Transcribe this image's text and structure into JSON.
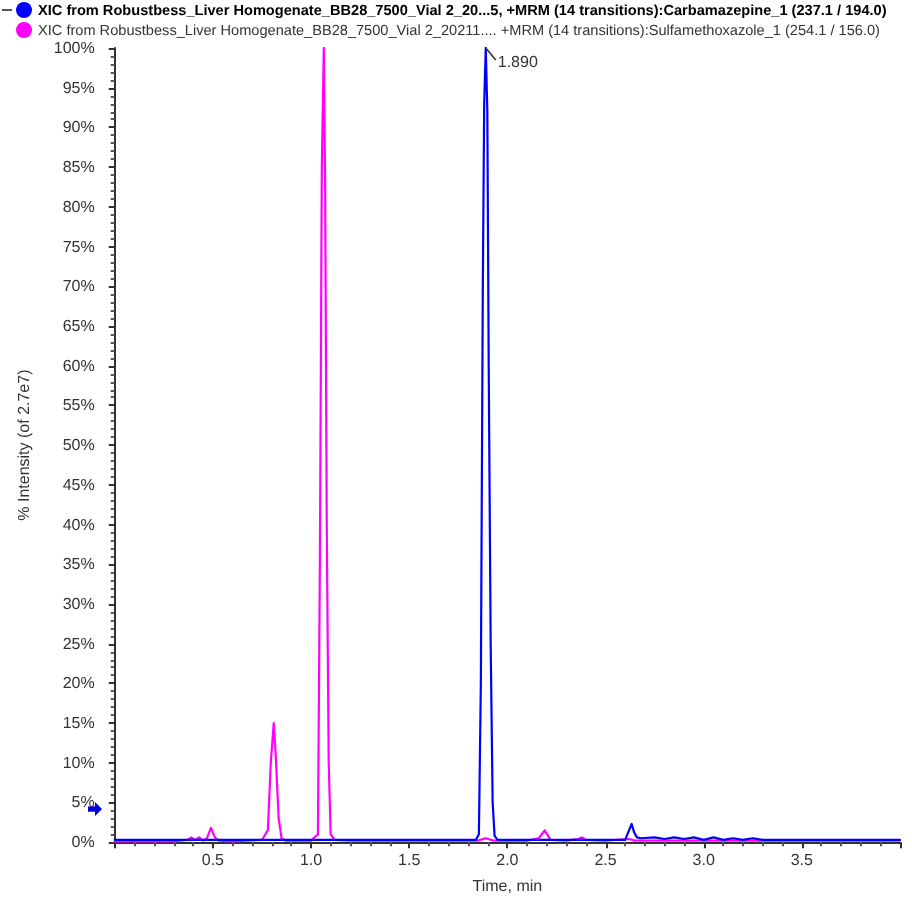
{
  "chart_data": {
    "type": "line",
    "xlabel": "Time, min",
    "ylabel": "% Intensity (of 2.7e7)",
    "xlim": [
      0,
      4
    ],
    "xticks": [
      0.5,
      {
        "value": 1,
        "label": "1.0"
      },
      1.5,
      {
        "value": 2,
        "label": "2.0"
      },
      2.5,
      {
        "value": 3,
        "label": "3.0"
      },
      3.5
    ],
    "ylim": [
      0,
      100
    ],
    "yticks": [
      {
        "value": 0,
        "label": "0%"
      },
      {
        "value": 5,
        "label": "5%"
      },
      {
        "value": 10,
        "label": "10%"
      },
      {
        "value": 15,
        "label": "15%"
      },
      {
        "value": 20,
        "label": "20%"
      },
      {
        "value": 25,
        "label": "25%"
      },
      {
        "value": 30,
        "label": "30%"
      },
      {
        "value": 35,
        "label": "35%"
      },
      {
        "value": 40,
        "label": "40%"
      },
      {
        "value": 45,
        "label": "45%"
      },
      {
        "value": 50,
        "label": "50%"
      },
      {
        "value": 55,
        "label": "55%"
      },
      {
        "value": 60,
        "label": "60%"
      },
      {
        "value": 65,
        "label": "65%"
      },
      {
        "value": 70,
        "label": "70%"
      },
      {
        "value": 75,
        "label": "75%"
      },
      {
        "value": 80,
        "label": "80%"
      },
      {
        "value": 85,
        "label": "85%"
      },
      {
        "value": 90,
        "label": "90%"
      },
      {
        "value": 95,
        "label": "95%"
      },
      {
        "value": 100,
        "label": "100%"
      }
    ],
    "grid": false,
    "legend": "top left",
    "marker": "none",
    "line_style": "solid",
    "annotations": [
      {
        "text": "1.890",
        "x": 1.89,
        "y": 100
      }
    ],
    "series": [
      {
        "name": "XIC from Robustbess_Liver Homogenate_BB28_7500_Vial 2_20...5, +MRM (14 transitions):Carbamazepine_1 (237.1 / 194.0)",
        "color": "#0000ff",
        "x": [
          0,
          0.5,
          1,
          1.5,
          1.84,
          1.855,
          1.865,
          1.875,
          1.882,
          1.89,
          1.898,
          1.905,
          1.915,
          1.925,
          1.935,
          1.95,
          2.3,
          2.6,
          2.615,
          2.633,
          2.645,
          2.66,
          2.68,
          2.75,
          2.8,
          2.85,
          2.9,
          2.95,
          3,
          3.05,
          3.1,
          3.15,
          3.2,
          3.25,
          3.3,
          3.4,
          3.6,
          3.8,
          4
        ],
        "values": [
          0.3,
          0.3,
          0.3,
          0.3,
          0.3,
          1,
          20,
          70,
          93,
          100,
          92,
          60,
          25,
          5,
          0.8,
          0.3,
          0.3,
          0.3,
          1.2,
          2.3,
          1.3,
          0.6,
          0.5,
          0.6,
          0.4,
          0.6,
          0.4,
          0.6,
          0.3,
          0.6,
          0.3,
          0.5,
          0.3,
          0.5,
          0.3,
          0.3,
          0.3,
          0.3,
          0.3
        ]
      },
      {
        "name": "XIC from Robustbess_Liver Homogenate_BB28_7500_Vial 2_20211.... +MRM (14 transitions):Sulfamethoxazole_1 (254.1 / 156.0)",
        "color": "#ff00ff",
        "x": [
          0,
          0.3,
          0.37,
          0.39,
          0.41,
          0.43,
          0.45,
          0.47,
          0.49,
          0.51,
          0.53,
          0.6,
          0.75,
          0.78,
          0.795,
          0.81,
          0.82,
          0.835,
          0.85,
          0.87,
          1,
          1.035,
          1.045,
          1.055,
          1.065,
          1.072,
          1.08,
          1.09,
          1.1,
          1.12,
          1.2,
          1.5,
          1.85,
          1.89,
          1.93,
          2.1,
          2.16,
          2.19,
          2.22,
          2.3,
          2.36,
          2.38,
          2.4,
          2.5,
          2.62,
          2.65,
          4
        ],
        "values": [
          0.1,
          0.1,
          0.3,
          0.6,
          0.3,
          0.6,
          0.2,
          0.5,
          1.8,
          0.6,
          0.2,
          0.1,
          0.3,
          1.5,
          10,
          15,
          11,
          3,
          0.5,
          0.2,
          0.2,
          1,
          35,
          85,
          100,
          82,
          40,
          10,
          1,
          0.3,
          0.2,
          0.2,
          0.2,
          0.5,
          0.2,
          0.2,
          0.5,
          1.5,
          0.3,
          0.2,
          0.4,
          0.6,
          0.3,
          0.2,
          0.4,
          0.2,
          0.2
        ]
      }
    ]
  }
}
